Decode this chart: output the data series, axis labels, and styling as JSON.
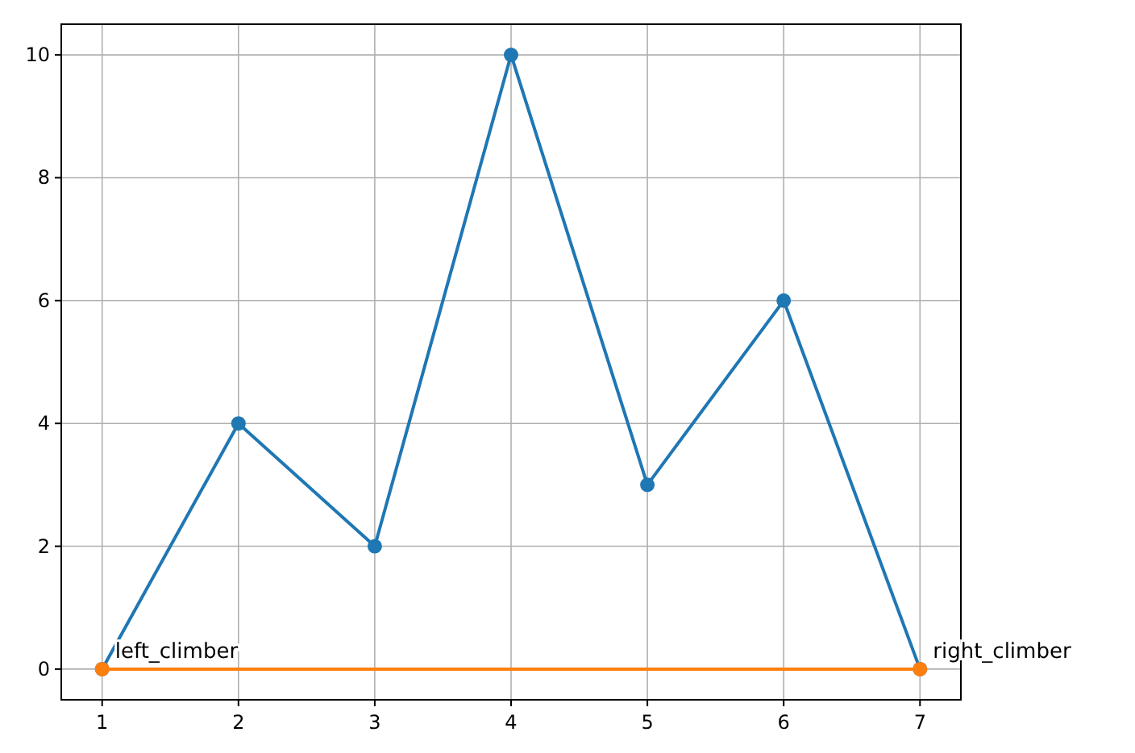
{
  "chart_data": {
    "type": "line",
    "x": [
      1,
      2,
      3,
      4,
      5,
      6,
      7
    ],
    "series": [
      {
        "color": "#1f77b4",
        "values": [
          0,
          4,
          2,
          10,
          3,
          6,
          0
        ]
      },
      {
        "color": "#ff7f0e",
        "x": [
          1,
          7
        ],
        "values": [
          0,
          0
        ]
      }
    ],
    "xlim": [
      0.7,
      7.3
    ],
    "ylim": [
      -0.5,
      10.5
    ],
    "xticks": [
      1,
      2,
      3,
      4,
      5,
      6,
      7
    ],
    "yticks": [
      0,
      2,
      4,
      6,
      8,
      10
    ],
    "grid": true,
    "marker": "circle",
    "line_style": "solid",
    "annotations": [
      {
        "text": "left_climber",
        "x": 1,
        "y": 0
      },
      {
        "text": "right_climber",
        "x": 7,
        "y": 0
      }
    ]
  }
}
